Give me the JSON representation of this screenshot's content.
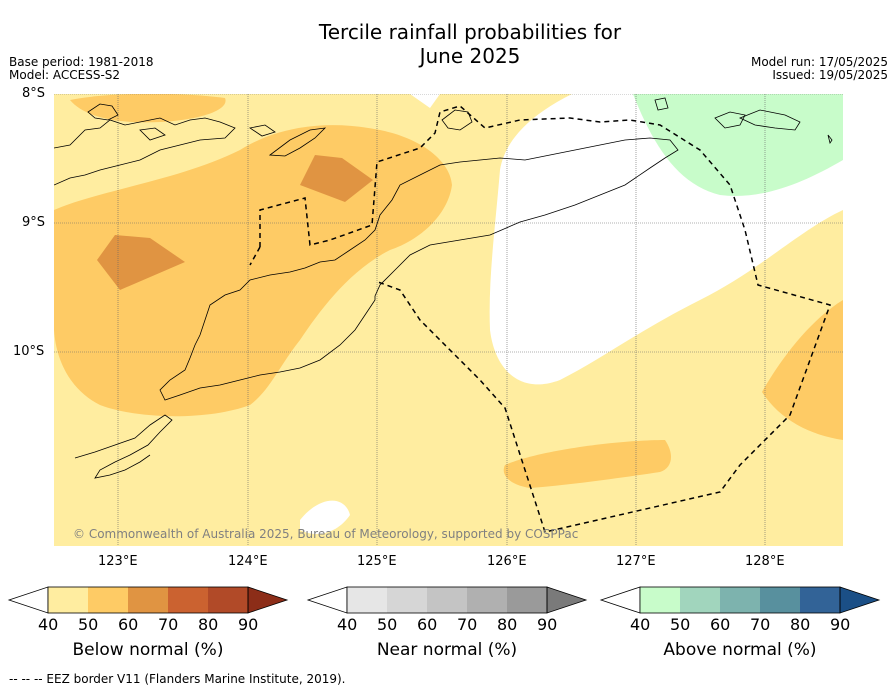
{
  "title_line1": "Tercile rainfall probabilities for",
  "title_line2": "June 2025",
  "base_period": "Base period: 1981-2018",
  "model": "Model: ACCESS-S2",
  "model_run": "Model run: 17/05/2025",
  "issued": "Issued: 19/05/2025",
  "lat_labels": [
    "8°S",
    "9°S",
    "10°S"
  ],
  "lon_labels": [
    "123°E",
    "124°E",
    "125°E",
    "126°E",
    "127°E",
    "128°E"
  ],
  "copyright": "© Commonwealth of Australia 2025, Bureau of Meteorology, supported by COSPPac",
  "colorbars": [
    {
      "label": "Below normal (%)",
      "ticks": [
        "40",
        "50",
        "60",
        "70",
        "80",
        "90"
      ],
      "colors": [
        "#ffeda0",
        "#fecb65",
        "#e09442",
        "#cb6230",
        "#b14a28",
        "#8c2d18"
      ]
    },
    {
      "label": "Near normal (%)",
      "ticks": [
        "40",
        "50",
        "60",
        "70",
        "80",
        "90"
      ],
      "colors": [
        "#e6e6e6",
        "#d6d6d6",
        "#c4c4c4",
        "#b0b0b0",
        "#9a9a9a",
        "#7a7a7a"
      ]
    },
    {
      "label": "Above normal (%)",
      "ticks": [
        "40",
        "50",
        "60",
        "70",
        "80",
        "90"
      ],
      "colors": [
        "#c8fcca",
        "#a1d5bd",
        "#7db3ae",
        "#58909e",
        "#326397",
        "#1b4f86"
      ]
    }
  ],
  "footer": "--  --  -- EEZ border V11 (Flanders Marine Institute, 2019)."
}
